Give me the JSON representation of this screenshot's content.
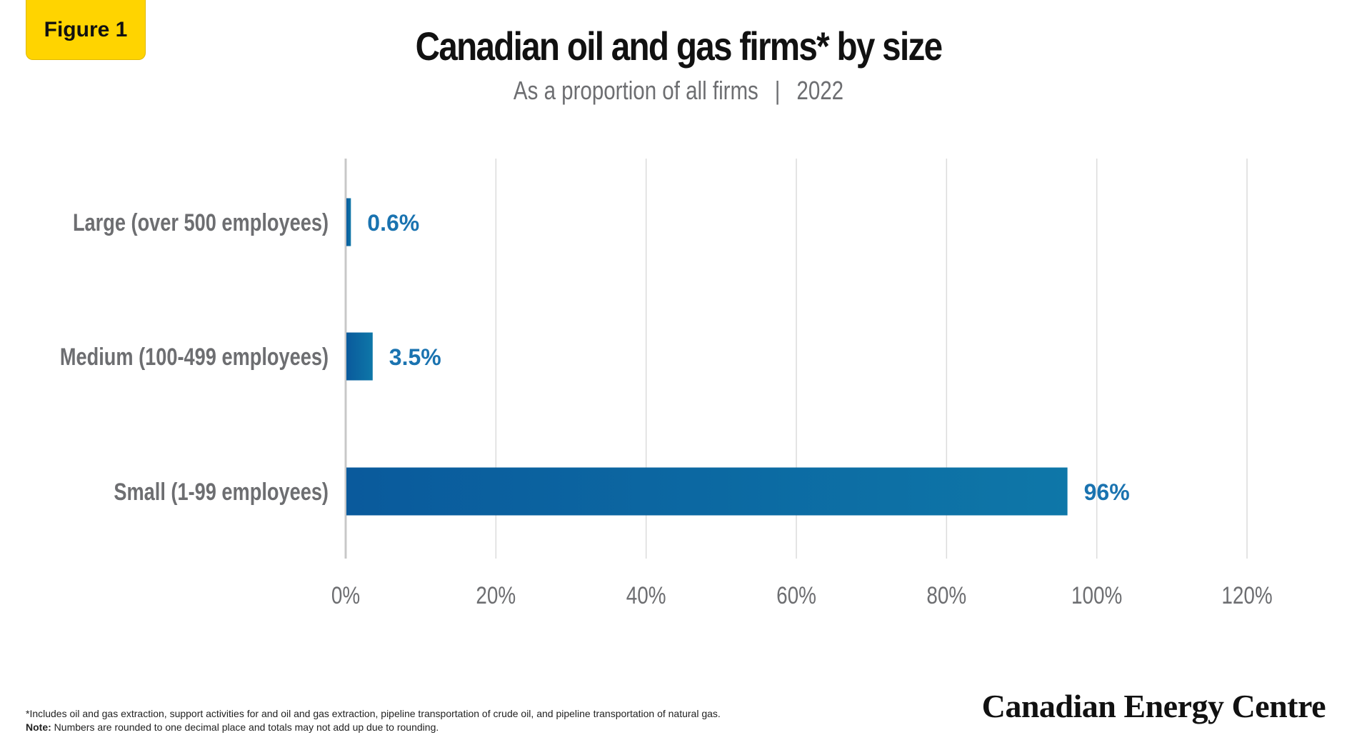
{
  "badge": "Figure 1",
  "title": "Canadian oil and gas firms* by size",
  "subtitle": {
    "left": "As a proportion of all firms",
    "separator": "|",
    "right": "2022"
  },
  "footnote": {
    "line1": "*Includes oil and gas extraction, support activities for and oil and gas extraction, pipeline transportation of crude oil, and pipeline transportation of natural gas.",
    "note_label": "Note:",
    "note_text": "Numbers are rounded to one decimal place and totals may not add up due to rounding."
  },
  "logo": "Canadian Energy Centre",
  "colors": {
    "bar": "#0E5FA0",
    "label": "#1a73b0",
    "badge": "#FFD400"
  },
  "chart_data": {
    "type": "bar",
    "orientation": "horizontal",
    "categories": [
      "Large (over 500 employees)",
      "Medium (100-499 employees)",
      "Small (1-99 employees)"
    ],
    "values": [
      0.6,
      3.5,
      96
    ],
    "data_labels": [
      "0.6%",
      "3.5%",
      "96%"
    ],
    "x_ticks": [
      "0%",
      "20%",
      "40%",
      "60%",
      "80%",
      "100%",
      "120%"
    ],
    "xlim": [
      0,
      120
    ],
    "grid": true
  }
}
